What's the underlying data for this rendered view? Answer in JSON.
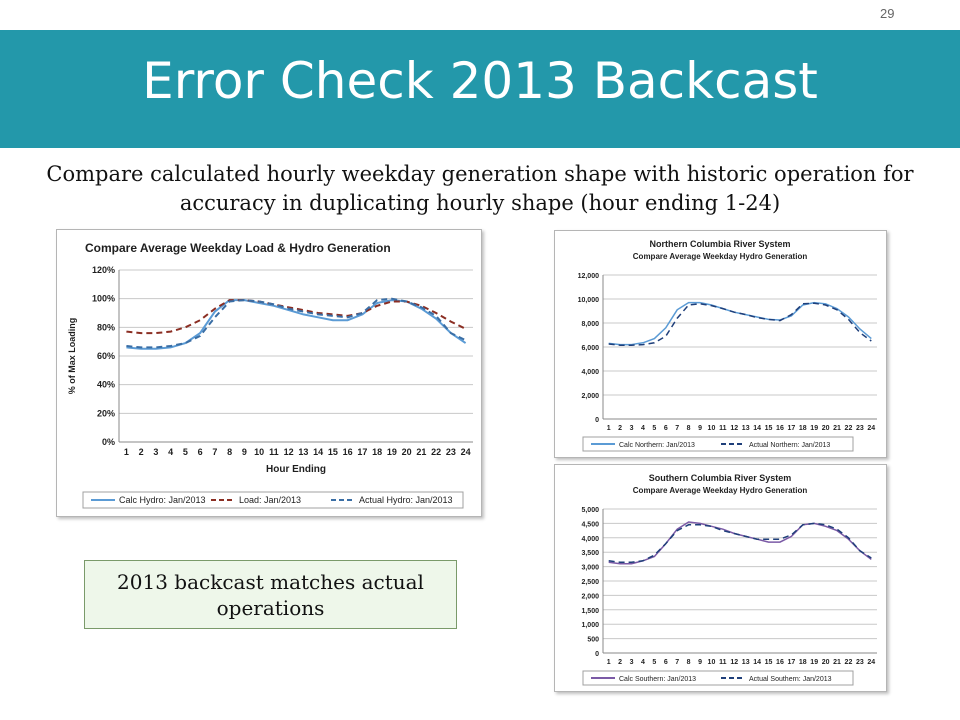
{
  "page_number": "29",
  "title": "Error Check 2013 Backcast",
  "subtitle": "Compare calculated hourly weekday generation shape with historic operation for accuracy in duplicating hourly shape (hour ending 1-24)",
  "callout": "2013 backcast matches actual operations",
  "chart_data": [
    {
      "type": "line",
      "title": "Compare Average Weekday Load & Hydro Generation",
      "xlabel": "Hour Ending",
      "ylabel": "% of Max Loading",
      "x": [
        1,
        2,
        3,
        4,
        5,
        6,
        7,
        8,
        9,
        10,
        11,
        12,
        13,
        14,
        15,
        16,
        17,
        18,
        19,
        20,
        21,
        22,
        23,
        24
      ],
      "y_ticks": [
        "0%",
        "20%",
        "40%",
        "60%",
        "80%",
        "100%",
        "120%"
      ],
      "ylim": [
        0,
        1.2
      ],
      "grid": true,
      "legend": "bottom",
      "series": [
        {
          "name": "Calc Hydro: Jan/2013",
          "color": "#5b9bd5",
          "dash": "solid",
          "values": [
            0.66,
            0.65,
            0.65,
            0.66,
            0.69,
            0.76,
            0.91,
            0.99,
            0.99,
            0.97,
            0.95,
            0.92,
            0.89,
            0.87,
            0.85,
            0.85,
            0.89,
            0.97,
            0.99,
            0.98,
            0.93,
            0.86,
            0.76,
            0.69
          ]
        },
        {
          "name": "Load: Jan/2013",
          "color": "#8b2e23",
          "dash": "dashed",
          "values": [
            0.77,
            0.76,
            0.76,
            0.77,
            0.8,
            0.85,
            0.93,
            0.99,
            0.99,
            0.98,
            0.96,
            0.94,
            0.92,
            0.9,
            0.89,
            0.88,
            0.9,
            0.95,
            0.98,
            0.98,
            0.95,
            0.9,
            0.84,
            0.79
          ]
        },
        {
          "name": "Actual Hydro: Jan/2013",
          "color": "#3a6ea5",
          "dash": "dashed",
          "values": [
            0.67,
            0.66,
            0.66,
            0.67,
            0.69,
            0.74,
            0.87,
            0.98,
            0.99,
            0.98,
            0.96,
            0.93,
            0.91,
            0.89,
            0.88,
            0.87,
            0.9,
            0.99,
            1.0,
            0.98,
            0.94,
            0.88,
            0.76,
            0.71
          ]
        }
      ]
    },
    {
      "type": "line",
      "title": "Northern Columbia River System",
      "subtitle": "Compare Average Weekday Hydro Generation",
      "x": [
        1,
        2,
        3,
        4,
        5,
        6,
        7,
        8,
        9,
        10,
        11,
        12,
        13,
        14,
        15,
        16,
        17,
        18,
        19,
        20,
        21,
        22,
        23,
        24
      ],
      "y_ticks": [
        "0",
        "2,000",
        "4,000",
        "6,000",
        "8,000",
        "10,000",
        "12,000"
      ],
      "ylim": [
        0,
        12000
      ],
      "grid": true,
      "legend": "bottom",
      "series": [
        {
          "name": "Calc Northern: Jan/2013",
          "color": "#5b9bd5",
          "dash": "solid",
          "values": [
            6300,
            6200,
            6200,
            6350,
            6700,
            7600,
            9100,
            9700,
            9700,
            9500,
            9200,
            8900,
            8700,
            8500,
            8300,
            8250,
            8600,
            9500,
            9700,
            9600,
            9200,
            8500,
            7500,
            6700
          ]
        },
        {
          "name": "Actual Northern: Jan/2013",
          "color": "#1f3f7a",
          "dash": "dashed",
          "values": [
            6250,
            6150,
            6150,
            6200,
            6350,
            6900,
            8400,
            9500,
            9600,
            9450,
            9200,
            8900,
            8700,
            8450,
            8300,
            8200,
            8700,
            9600,
            9650,
            9500,
            9100,
            8300,
            7200,
            6500
          ]
        }
      ]
    },
    {
      "type": "line",
      "title": "Southern Columbia River System",
      "subtitle": "Compare Average Weekday Hydro Generation",
      "x": [
        1,
        2,
        3,
        4,
        5,
        6,
        7,
        8,
        9,
        10,
        11,
        12,
        13,
        14,
        15,
        16,
        17,
        18,
        19,
        20,
        21,
        22,
        23,
        24
      ],
      "y_ticks": [
        "0",
        "500",
        "1,000",
        "1,500",
        "2,000",
        "2,500",
        "3,000",
        "3,500",
        "4,000",
        "4,500",
        "5,000"
      ],
      "ylim": [
        0,
        5000
      ],
      "grid": true,
      "legend": "bottom",
      "series": [
        {
          "name": "Calc Southern: Jan/2013",
          "color": "#7b5aa6",
          "dash": "solid",
          "values": [
            3150,
            3100,
            3100,
            3200,
            3350,
            3800,
            4300,
            4550,
            4500,
            4400,
            4300,
            4150,
            4050,
            3950,
            3850,
            3850,
            4050,
            4450,
            4500,
            4400,
            4250,
            3950,
            3550,
            3250
          ]
        },
        {
          "name": "Actual Southern: Jan/2013",
          "color": "#1f3f7a",
          "dash": "dashed",
          "values": [
            3200,
            3150,
            3150,
            3200,
            3400,
            3800,
            4250,
            4450,
            4450,
            4400,
            4250,
            4150,
            4050,
            3950,
            3950,
            3950,
            4100,
            4450,
            4500,
            4450,
            4300,
            4000,
            3550,
            3300
          ]
        }
      ]
    }
  ]
}
